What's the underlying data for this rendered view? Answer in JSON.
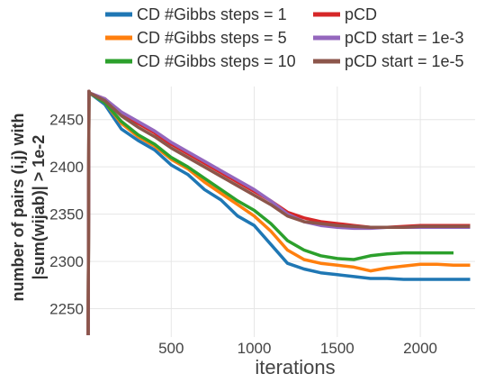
{
  "chart_data": {
    "type": "line",
    "title": "",
    "xlabel": "iterations",
    "ylabel_lines": [
      "number of pairs (i,j) with",
      "|sum(wijab)| > 1e-2"
    ],
    "xlim": [
      0,
      2330
    ],
    "ylim": [
      2220,
      2485
    ],
    "xticks": [
      500,
      1000,
      1500,
      2000
    ],
    "yticks": [
      2250,
      2300,
      2350,
      2400,
      2450
    ],
    "grid": true,
    "legend_position": "top",
    "series": [
      {
        "name": "CD #Gibbs steps = 1",
        "color": "#1f77b4",
        "x": [
          0,
          5,
          10,
          100,
          200,
          300,
          400,
          500,
          600,
          700,
          800,
          900,
          1000,
          1100,
          1200,
          1300,
          1400,
          1500,
          1600,
          1700,
          1800,
          1900,
          2000,
          2100,
          2200,
          2300
        ],
        "y": [
          2222,
          2480,
          2478,
          2466,
          2440,
          2428,
          2418,
          2402,
          2392,
          2376,
          2365,
          2348,
          2338,
          2318,
          2298,
          2292,
          2288,
          2286,
          2284,
          2282,
          2282,
          2281,
          2281,
          2281,
          2281,
          2281
        ]
      },
      {
        "name": "CD #Gibbs steps = 5",
        "color": "#ff7f0e",
        "x": [
          0,
          5,
          10,
          100,
          200,
          300,
          400,
          500,
          600,
          700,
          800,
          900,
          1000,
          1100,
          1200,
          1300,
          1400,
          1500,
          1600,
          1700,
          1800,
          1900,
          2000,
          2100,
          2200,
          2300
        ],
        "y": [
          2222,
          2480,
          2478,
          2468,
          2446,
          2432,
          2422,
          2408,
          2398,
          2384,
          2372,
          2360,
          2348,
          2332,
          2312,
          2302,
          2298,
          2296,
          2294,
          2290,
          2293,
          2295,
          2297,
          2297,
          2296,
          2296
        ]
      },
      {
        "name": "CD #Gibbs steps = 10",
        "color": "#2ca02c",
        "x": [
          0,
          5,
          10,
          100,
          200,
          300,
          400,
          500,
          600,
          700,
          800,
          900,
          1000,
          1100,
          1200,
          1300,
          1400,
          1500,
          1600,
          1700,
          1800,
          1900,
          2000,
          2100,
          2200
        ],
        "y": [
          2222,
          2480,
          2478,
          2468,
          2448,
          2434,
          2424,
          2410,
          2400,
          2388,
          2376,
          2364,
          2354,
          2340,
          2322,
          2312,
          2306,
          2303,
          2302,
          2306,
          2308,
          2309,
          2309,
          2309,
          2309
        ]
      },
      {
        "name": "pCD",
        "color": "#d62728",
        "x": [
          0,
          5,
          10,
          100,
          200,
          300,
          400,
          500,
          600,
          700,
          800,
          900,
          1000,
          1100,
          1200,
          1300,
          1400,
          1500,
          1600,
          1700,
          1800,
          1900,
          2000,
          2100,
          2200,
          2300
        ],
        "y": [
          2222,
          2480,
          2478,
          2472,
          2456,
          2446,
          2436,
          2424,
          2414,
          2404,
          2394,
          2384,
          2374,
          2364,
          2352,
          2346,
          2342,
          2340,
          2338,
          2336,
          2336,
          2337,
          2338,
          2338,
          2338,
          2338
        ]
      },
      {
        "name": "pCD start = 1e-3",
        "color": "#9467bd",
        "x": [
          0,
          5,
          10,
          100,
          200,
          300,
          400,
          500,
          600,
          700,
          800,
          900,
          1000,
          1100,
          1200,
          1300,
          1400,
          1500,
          1600,
          1700,
          1800,
          1900,
          2000,
          2100,
          2200,
          2300
        ],
        "y": [
          2222,
          2480,
          2478,
          2472,
          2458,
          2448,
          2438,
          2426,
          2416,
          2406,
          2396,
          2386,
          2376,
          2364,
          2350,
          2342,
          2338,
          2336,
          2335,
          2335,
          2336,
          2336,
          2336,
          2336,
          2336,
          2336
        ]
      },
      {
        "name": "pCD start = 1e-5",
        "color": "#8c564b",
        "x": [
          0,
          5,
          10,
          100,
          200,
          300,
          400,
          500,
          600,
          700,
          800,
          900,
          1000,
          1100,
          1200,
          1300,
          1400,
          1500,
          1600,
          1700,
          1800,
          1900,
          2000,
          2100,
          2200,
          2300
        ],
        "y": [
          2222,
          2480,
          2478,
          2470,
          2454,
          2442,
          2432,
          2420,
          2410,
          2400,
          2390,
          2380,
          2370,
          2360,
          2348,
          2342,
          2340,
          2338,
          2337,
          2336,
          2336,
          2336,
          2337,
          2337,
          2337,
          2337
        ]
      }
    ]
  }
}
